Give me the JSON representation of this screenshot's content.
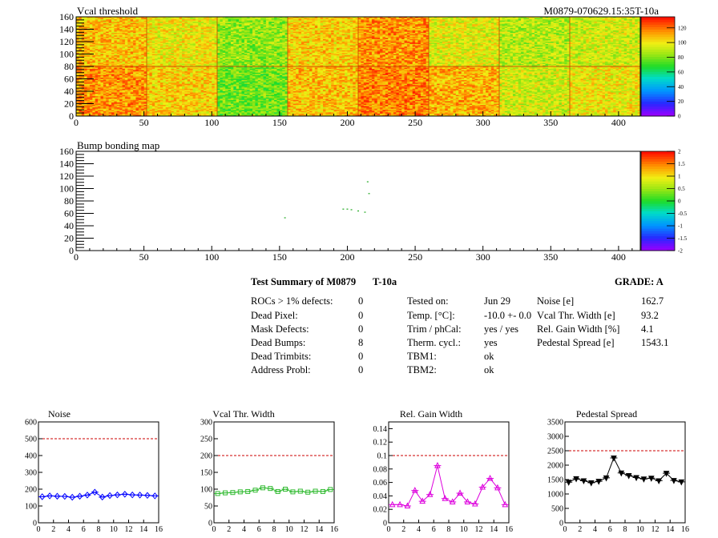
{
  "maps": [
    {
      "title": "Vcal threshold",
      "id_label": "M0879-070629.15:35T-10a",
      "x_ticks": [
        "0",
        "50",
        "100",
        "150",
        "200",
        "250",
        "300",
        "350",
        "400"
      ],
      "y_ticks": [
        "0",
        "20",
        "40",
        "60",
        "80",
        "100",
        "120",
        "140",
        "160"
      ],
      "xlim": [
        0,
        416
      ],
      "ylim": [
        0,
        160
      ],
      "palette_ticks": [
        "0",
        "20",
        "40",
        "60",
        "80",
        "100",
        "120"
      ],
      "palette_range": [
        0,
        135
      ]
    },
    {
      "title": "Bump bonding map",
      "x_ticks": [
        "0",
        "50",
        "100",
        "150",
        "200",
        "250",
        "300",
        "350",
        "400"
      ],
      "y_ticks": [
        "0",
        "20",
        "40",
        "60",
        "80",
        "100",
        "120",
        "140",
        "160"
      ],
      "xlim": [
        0,
        416
      ],
      "ylim": [
        0,
        160
      ],
      "palette_ticks": [
        "-2",
        "-1.5",
        "-1",
        "-0.5",
        "0",
        "0.5",
        "1",
        "1.5",
        "2"
      ],
      "palette_range": [
        -2,
        2
      ],
      "points": [
        [
          154,
          53
        ],
        [
          197,
          67
        ],
        [
          200,
          67
        ],
        [
          203,
          66
        ],
        [
          208,
          64
        ],
        [
          213,
          62
        ],
        [
          216,
          92
        ],
        [
          215,
          111
        ]
      ]
    }
  ],
  "summary": {
    "title": "Test Summary of M0879",
    "test": "T-10a",
    "grade": "GRADE:  A",
    "col1": [
      {
        "label": "ROCs > 1% defects:",
        "value": "0"
      },
      {
        "label": "Dead Pixel:",
        "value": "0"
      },
      {
        "label": "Mask Defects:",
        "value": "0"
      },
      {
        "label": "Dead Bumps:",
        "value": "8"
      },
      {
        "label": "Dead Trimbits:",
        "value": "0"
      },
      {
        "label": "Address Probl:",
        "value": "0"
      }
    ],
    "col2": [
      {
        "label": "Tested on:",
        "value": "Jun 29"
      },
      {
        "label": "Temp. [°C]:",
        "value": "-10.0 +- 0.0"
      },
      {
        "label": "Trim / phCal:",
        "value": "yes / yes"
      },
      {
        "label": "Therm. cycl.:",
        "value": "yes"
      },
      {
        "label": "TBM1:",
        "value": "ok"
      },
      {
        "label": "TBM2:",
        "value": "ok"
      }
    ],
    "col3": [
      {
        "label": "Noise [e]",
        "value": "162.7"
      },
      {
        "label": "Vcal Thr. Width [e]",
        "value": "93.2"
      },
      {
        "label": "Rel. Gain Width [%]",
        "value": "4.1"
      },
      {
        "label": "Pedestal Spread [e]",
        "value": "1543.1"
      }
    ]
  },
  "chart_data": [
    {
      "type": "line",
      "title": "Noise",
      "color": "#0000ff",
      "marker": "diamond",
      "x": [
        0.5,
        1.5,
        2.5,
        3.5,
        4.5,
        5.5,
        6.5,
        7.5,
        8.5,
        9.5,
        10.5,
        11.5,
        12.5,
        13.5,
        14.5,
        15.5
      ],
      "values": [
        155,
        160,
        158,
        157,
        152,
        158,
        165,
        182,
        153,
        162,
        166,
        170,
        166,
        165,
        163,
        160
      ],
      "xlim": [
        0,
        16
      ],
      "ylim": [
        0,
        600
      ],
      "limit": 500,
      "x_ticks": [
        "0",
        "2",
        "4",
        "6",
        "8",
        "10",
        "12",
        "14",
        "16"
      ],
      "y_ticks": [
        "0",
        "100",
        "200",
        "300",
        "400",
        "500",
        "600"
      ]
    },
    {
      "type": "line",
      "title": "Vcal Thr. Width",
      "color": "#33bb33",
      "marker": "square",
      "x": [
        0.5,
        1.5,
        2.5,
        3.5,
        4.5,
        5.5,
        6.5,
        7.5,
        8.5,
        9.5,
        10.5,
        11.5,
        12.5,
        13.5,
        14.5,
        15.5
      ],
      "values": [
        87,
        89,
        90,
        92,
        93,
        97,
        104,
        102,
        93,
        100,
        92,
        94,
        91,
        94,
        93,
        99
      ],
      "xlim": [
        0,
        16
      ],
      "ylim": [
        0,
        300
      ],
      "limit": 200,
      "x_ticks": [
        "0",
        "2",
        "4",
        "6",
        "8",
        "10",
        "12",
        "14",
        "16"
      ],
      "y_ticks": [
        "0",
        "50",
        "100",
        "150",
        "200",
        "250",
        "300"
      ]
    },
    {
      "type": "line",
      "title": "Rel. Gain Width",
      "color": "#dd00dd",
      "marker": "triangle",
      "x": [
        0.5,
        1.5,
        2.5,
        3.5,
        4.5,
        5.5,
        6.5,
        7.5,
        8.5,
        9.5,
        10.5,
        11.5,
        12.5,
        13.5,
        14.5,
        15.5
      ],
      "values": [
        0.027,
        0.027,
        0.025,
        0.048,
        0.032,
        0.042,
        0.085,
        0.036,
        0.031,
        0.044,
        0.031,
        0.028,
        0.053,
        0.066,
        0.052,
        0.027
      ],
      "xlim": [
        0,
        16
      ],
      "ylim": [
        0,
        0.15
      ],
      "limit": 0.1,
      "x_ticks": [
        "0",
        "2",
        "4",
        "6",
        "8",
        "10",
        "12",
        "14",
        "16"
      ],
      "y_ticks": [
        "0",
        "0.02",
        "0.04",
        "0.06",
        "0.08",
        "0.1",
        "0.12",
        "0.14"
      ]
    },
    {
      "type": "line",
      "title": "Pedestal Spread",
      "color": "#000000",
      "marker": "triangle-down",
      "x": [
        0.5,
        1.5,
        2.5,
        3.5,
        4.5,
        5.5,
        6.5,
        7.5,
        8.5,
        9.5,
        10.5,
        11.5,
        12.5,
        13.5,
        14.5,
        15.5
      ],
      "values": [
        1410,
        1530,
        1460,
        1390,
        1440,
        1560,
        2250,
        1730,
        1640,
        1570,
        1520,
        1550,
        1460,
        1720,
        1470,
        1420
      ],
      "xlim": [
        0,
        16
      ],
      "ylim": [
        0,
        3500
      ],
      "limit": 2500,
      "x_ticks": [
        "0",
        "2",
        "4",
        "6",
        "8",
        "10",
        "12",
        "14",
        "16"
      ],
      "y_ticks": [
        "0",
        "500",
        "1000",
        "1500",
        "2000",
        "2500",
        "3000",
        "3500"
      ]
    }
  ]
}
